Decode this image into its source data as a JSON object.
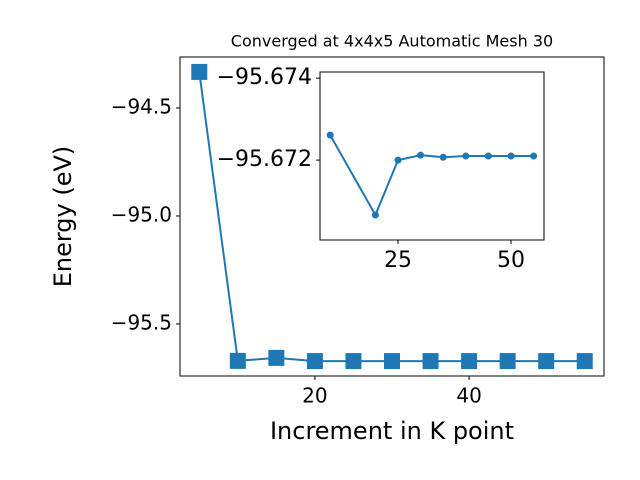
{
  "chart_data": [
    {
      "type": "line",
      "title": "Converged at 4x4x5 Automatic Mesh 30",
      "x_label": "Increment in K point",
      "y_label": "Energy (eV)",
      "x": [
        5,
        10,
        15,
        20,
        25,
        30,
        35,
        40,
        45,
        50,
        55
      ],
      "series": [
        {
          "color": "#1f77b4",
          "marker": "square",
          "values": [
            -94.333,
            -95.671,
            -95.657,
            -95.672,
            -95.672,
            -95.672,
            -95.672,
            -95.672,
            -95.672,
            -95.672,
            -95.672
          ]
        }
      ],
      "xlim": [
        2.5,
        57.5
      ],
      "ylim": [
        -95.741,
        -94.264
      ],
      "xticks": [
        20,
        40
      ],
      "yticks": [
        {
          "value": -95.5,
          "label": "−95.5"
        },
        {
          "value": -95.0,
          "label": "−95.0"
        },
        {
          "value": -94.5,
          "label": "−94.5"
        }
      ]
    },
    {
      "type": "line",
      "x": [
        10,
        20,
        25,
        30,
        35,
        40,
        45,
        50,
        55
      ],
      "series": [
        {
          "color": "#1f77b4",
          "marker": "circle",
          "values": [
            -95.67261,
            -95.67066,
            -95.672,
            -95.67212,
            -95.67207,
            -95.6721,
            -95.6721,
            -95.6721,
            -95.6721
          ]
        }
      ],
      "xlim": [
        7.74,
        57.3
      ],
      "ylim": [
        -95.67005,
        -95.67415
      ],
      "xticks": [
        25,
        50
      ],
      "yticks": [
        {
          "value": -95.674,
          "label": "−95.674"
        },
        {
          "value": -95.672,
          "label": "−95.672"
        }
      ]
    }
  ]
}
